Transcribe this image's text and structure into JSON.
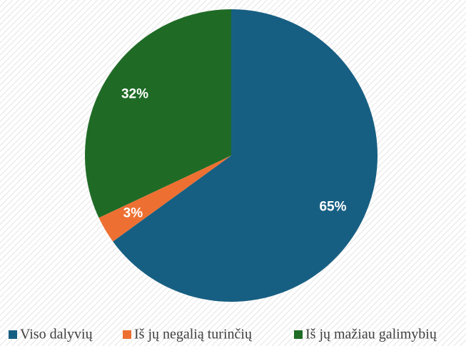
{
  "chart_data": {
    "type": "pie",
    "categories": [
      "Viso dalyvių",
      "Iš jų negalią turinčių",
      "Iš jų mažiau galimybių"
    ],
    "values": [
      65,
      3,
      32
    ],
    "value_labels": [
      "65%",
      "3%",
      "32%"
    ],
    "colors": [
      "#175f82",
      "#ed7032",
      "#1f6b26"
    ],
    "legend": "bottom"
  }
}
